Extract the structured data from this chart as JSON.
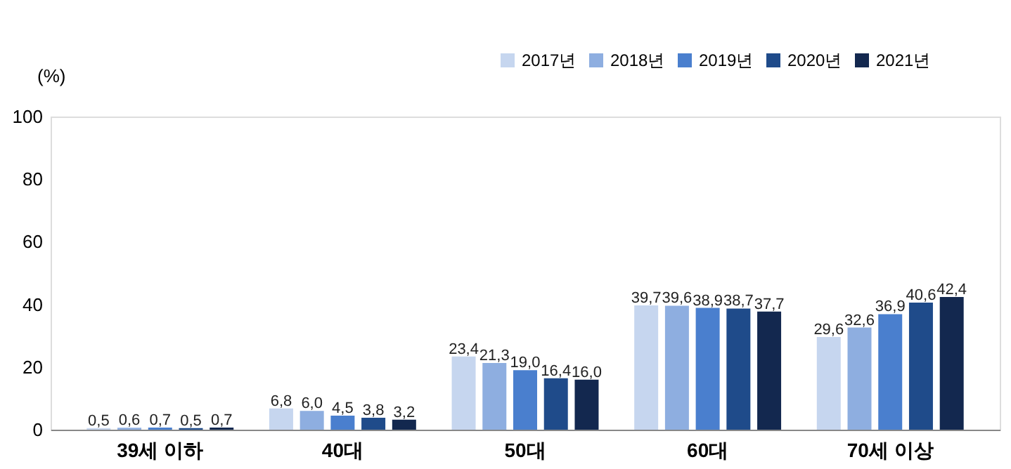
{
  "chart_data": {
    "type": "bar",
    "ylabel": "(%)",
    "categories": [
      "39세 이하",
      "40대",
      "50대",
      "60대",
      "70세 이상"
    ],
    "series": [
      {
        "name": "2017년",
        "color": "#c6d6ef",
        "values": [
          0.5,
          6.8,
          23.4,
          39.7,
          29.6
        ],
        "value_labels": [
          "0,5",
          "6,8",
          "23,4",
          "39,7",
          "29,6"
        ]
      },
      {
        "name": "2018년",
        "color": "#8eaee0",
        "values": [
          0.6,
          6.0,
          21.3,
          39.6,
          32.6
        ],
        "value_labels": [
          "0,6",
          "6,0",
          "21,3",
          "39,6",
          "32,6"
        ]
      },
      {
        "name": "2019년",
        "color": "#4a7fce",
        "values": [
          0.7,
          4.5,
          19.0,
          38.9,
          36.9
        ],
        "value_labels": [
          "0,7",
          "4,5",
          "19,0",
          "38,9",
          "36,9"
        ]
      },
      {
        "name": "2020년",
        "color": "#1f4b8a",
        "values": [
          0.5,
          3.8,
          16.4,
          38.7,
          40.6
        ],
        "value_labels": [
          "0,5",
          "3,8",
          "16,4",
          "38,7",
          "40,6"
        ]
      },
      {
        "name": "2021년",
        "color": "#13284f",
        "values": [
          0.7,
          3.2,
          16.0,
          37.7,
          42.4
        ],
        "value_labels": [
          "0,7",
          "3,2",
          "16,0",
          "37,7",
          "42,4"
        ]
      }
    ],
    "ylim": [
      0,
      100
    ],
    "yticks": [
      0,
      20,
      40,
      60,
      80,
      100
    ],
    "grid": false,
    "legend": "top right"
  }
}
